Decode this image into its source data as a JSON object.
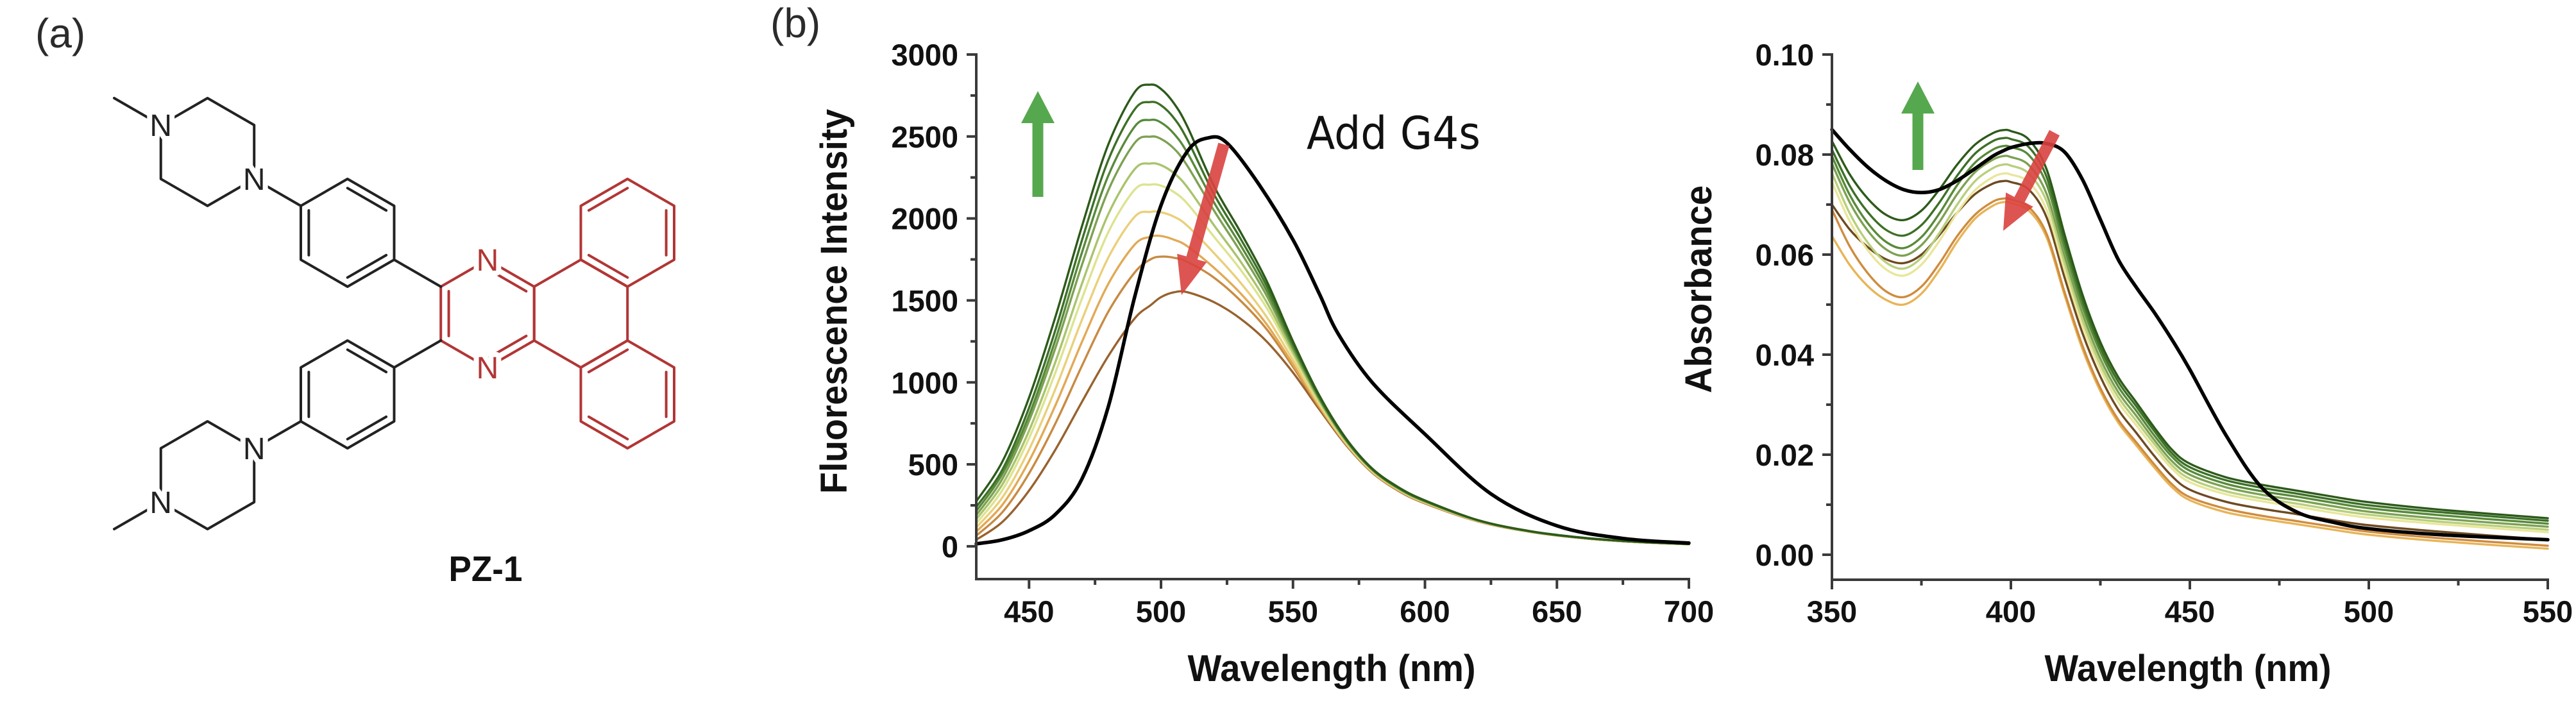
{
  "figure": {
    "panel_a_label": "(a)",
    "panel_b_label": "(b)"
  },
  "molecule": {
    "name": "PZ-1",
    "nitrogen_label": "N",
    "core_color": "#b23535",
    "substituent_color": "#222222"
  },
  "trend_arrow_colors": {
    "increase": "#56a84e",
    "decrease": "#d9423f"
  },
  "chart_data": [
    {
      "type": "line",
      "title": "",
      "xlabel": "Wavelength (nm)",
      "ylabel": "Fluorescence Intensity",
      "annotation_text": "Add G4s",
      "xlim": [
        430,
        700
      ],
      "ylim": [
        -200,
        3000
      ],
      "grid": false,
      "legend": "none",
      "xticks": [
        450,
        500,
        550,
        600,
        650,
        700
      ],
      "x_tick_labels": [
        "450",
        "500",
        "550",
        "600",
        "650",
        "700"
      ],
      "x_minor_ticks": [
        475,
        525,
        575,
        625,
        675
      ],
      "yticks": [
        0,
        500,
        1000,
        1500,
        2000,
        2500,
        3000
      ],
      "y_tick_labels": [
        "0",
        "500",
        "1000",
        "1500",
        "2000",
        "2500",
        "3000"
      ],
      "y_minor_ticks": [
        250,
        750,
        1250,
        1750,
        2250,
        2750
      ],
      "x": [
        430,
        440,
        450,
        460,
        470,
        480,
        490,
        496,
        500,
        505,
        510,
        520,
        530,
        540,
        550,
        560,
        570,
        580,
        590,
        600,
        620,
        640,
        660,
        680,
        700
      ],
      "series": [
        {
          "color": "#2c5a1a",
          "values": [
            274,
            520,
            907,
            1400,
            1950,
            2450,
            2770,
            2816,
            2790,
            2700,
            2560,
            2200,
            1920,
            1620,
            1250,
            920,
            660,
            475,
            360,
            280,
            160,
            92,
            52,
            28,
            14
          ]
        },
        {
          "color": "#3d7027",
          "values": [
            240,
            470,
            845,
            1320,
            1865,
            2355,
            2665,
            2710,
            2690,
            2610,
            2480,
            2150,
            1880,
            1590,
            1235,
            910,
            655,
            472,
            357,
            278,
            160,
            92,
            52,
            28,
            14
          ]
        },
        {
          "color": "#588a3a",
          "values": [
            215,
            445,
            800,
            1260,
            1790,
            2260,
            2560,
            2601,
            2585,
            2515,
            2400,
            2100,
            1840,
            1560,
            1220,
            905,
            652,
            470,
            355,
            276,
            159,
            91,
            51,
            28,
            14
          ]
        },
        {
          "color": "#7da152",
          "values": [
            190,
            415,
            765,
            1210,
            1715,
            2170,
            2460,
            2499,
            2485,
            2425,
            2320,
            2050,
            1800,
            1530,
            1205,
            898,
            648,
            468,
            353,
            274,
            158,
            91,
            51,
            27,
            14
          ]
        },
        {
          "color": "#a9c46c",
          "values": [
            165,
            380,
            705,
            1125,
            1600,
            2025,
            2300,
            2335,
            2325,
            2275,
            2190,
            1960,
            1740,
            1490,
            1185,
            888,
            643,
            465,
            350,
            272,
            157,
            90,
            51,
            27,
            13
          ]
        },
        {
          "color": "#dde38f",
          "values": [
            140,
            345,
            660,
            1060,
            1510,
            1915,
            2175,
            2206,
            2200,
            2160,
            2090,
            1890,
            1690,
            1455,
            1165,
            878,
            638,
            462,
            348,
            270,
            156,
            90,
            50,
            27,
            13
          ]
        },
        {
          "color": "#ead07a",
          "values": [
            115,
            300,
            590,
            960,
            1380,
            1760,
            2010,
            2040,
            2038,
            2010,
            1955,
            1790,
            1610,
            1400,
            1135,
            865,
            632,
            458,
            345,
            268,
            155,
            89,
            50,
            27,
            13
          ]
        },
        {
          "color": "#e2a955",
          "values": [
            90,
            255,
            520,
            860,
            1245,
            1600,
            1840,
            1888,
            1893,
            1870,
            1830,
            1700,
            1545,
            1355,
            1110,
            855,
            628,
            455,
            343,
            266,
            154,
            89,
            50,
            26,
            13
          ]
        },
        {
          "color": "#c88a42",
          "values": [
            65,
            210,
            445,
            750,
            1100,
            1430,
            1670,
            1750,
            1767,
            1760,
            1735,
            1640,
            1500,
            1325,
            1095,
            848,
            625,
            452,
            340,
            264,
            153,
            88,
            49,
            26,
            13
          ]
        },
        {
          "color": "#98622e",
          "values": [
            40,
            150,
            340,
            590,
            880,
            1160,
            1390,
            1470,
            1520,
            1550,
            1550,
            1490,
            1390,
            1250,
            1060,
            835,
            620,
            450,
            338,
            262,
            152,
            88,
            49,
            26,
            13
          ]
        }
      ],
      "reference_curve": {
        "color": "#000000",
        "x": [
          430,
          440,
          450,
          460,
          470,
          480,
          490,
          500,
          510,
          518,
          525,
          537,
          550,
          560,
          567,
          580,
          600,
          625,
          650,
          675,
          700
        ],
        "values": [
          15,
          40,
          95,
          195,
          410,
          850,
          1520,
          2080,
          2410,
          2492,
          2460,
          2210,
          1870,
          1540,
          1300,
          1000,
          684,
          320,
          125,
          48,
          20
        ]
      }
    },
    {
      "type": "line",
      "title": "",
      "xlabel": "Wavelength (nm)",
      "ylabel": "Absorbance",
      "xlim": [
        350,
        550
      ],
      "ylim": [
        -0.005,
        0.1
      ],
      "grid": false,
      "legend": "none",
      "xticks": [
        350,
        400,
        450,
        500,
        550
      ],
      "x_tick_labels": [
        "350",
        "400",
        "450",
        "500",
        "550"
      ],
      "x_minor_ticks": [
        375,
        425,
        475,
        525
      ],
      "yticks": [
        0.0,
        0.02,
        0.04,
        0.06,
        0.08,
        0.1
      ],
      "y_tick_labels": [
        "0.00",
        "0.02",
        "0.04",
        "0.06",
        "0.08",
        "0.10"
      ],
      "y_minor_ticks": [
        0.01,
        0.03,
        0.05,
        0.07,
        0.09
      ],
      "x": [
        350,
        355,
        360,
        365,
        370,
        375,
        380,
        385,
        390,
        395,
        398,
        400,
        405,
        410,
        415,
        420,
        425,
        430,
        435,
        440,
        445,
        450,
        460,
        470,
        480,
        490,
        500,
        520,
        550
      ],
      "series": [
        {
          "color": "#2c5a1a",
          "values": [
            0.0827,
            0.076,
            0.0712,
            0.068,
            0.0669,
            0.0688,
            0.073,
            0.078,
            0.082,
            0.0843,
            0.0849,
            0.0847,
            0.083,
            0.077,
            0.064,
            0.052,
            0.0425,
            0.0355,
            0.0305,
            0.0255,
            0.021,
            0.0182,
            0.0155,
            0.014,
            0.0128,
            0.0116,
            0.0105,
            0.009,
            0.0073
          ]
        },
        {
          "color": "#3d7027",
          "values": [
            0.081,
            0.0737,
            0.0685,
            0.065,
            0.0638,
            0.0659,
            0.0704,
            0.0758,
            0.0802,
            0.0827,
            0.0833,
            0.0831,
            0.0815,
            0.0755,
            0.0627,
            0.0509,
            0.0415,
            0.0346,
            0.0297,
            0.0248,
            0.0203,
            0.0175,
            0.0149,
            0.0134,
            0.0122,
            0.011,
            0.0099,
            0.0085,
            0.0068
          ]
        },
        {
          "color": "#588a3a",
          "values": [
            0.0797,
            0.0719,
            0.0663,
            0.0626,
            0.0613,
            0.0635,
            0.0682,
            0.0739,
            0.0784,
            0.081,
            0.0817,
            0.0815,
            0.0799,
            0.074,
            0.0614,
            0.0497,
            0.0405,
            0.0336,
            0.0288,
            0.0239,
            0.0196,
            0.0168,
            0.0142,
            0.0127,
            0.0116,
            0.0104,
            0.0093,
            0.0079,
            0.0062
          ]
        },
        {
          "color": "#7da152",
          "values": [
            0.0782,
            0.0704,
            0.0648,
            0.0611,
            0.0598,
            0.0619,
            0.0665,
            0.0721,
            0.0765,
            0.079,
            0.0797,
            0.0795,
            0.0779,
            0.0721,
            0.0598,
            0.0483,
            0.0392,
            0.0325,
            0.0278,
            0.023,
            0.0187,
            0.016,
            0.0135,
            0.012,
            0.0109,
            0.0097,
            0.0086,
            0.0072,
            0.0056
          ]
        },
        {
          "color": "#b8cf7c",
          "values": [
            0.0763,
            0.0682,
            0.0624,
            0.0585,
            0.0572,
            0.0594,
            0.0643,
            0.07,
            0.0747,
            0.0773,
            0.078,
            0.0778,
            0.0762,
            0.0706,
            0.0584,
            0.047,
            0.0381,
            0.0315,
            0.0268,
            0.0222,
            0.0179,
            0.0152,
            0.0127,
            0.0113,
            0.0102,
            0.009,
            0.008,
            0.0066,
            0.005
          ]
        },
        {
          "color": "#e9e69a",
          "values": [
            0.0745,
            0.0666,
            0.0609,
            0.0571,
            0.0558,
            0.058,
            0.0627,
            0.0684,
            0.0729,
            0.0755,
            0.0762,
            0.076,
            0.0745,
            0.0689,
            0.0569,
            0.0458,
            0.0371,
            0.0305,
            0.0259,
            0.0213,
            0.0172,
            0.0145,
            0.0121,
            0.0107,
            0.0096,
            0.0084,
            0.0074,
            0.0061,
            0.0045
          ]
        },
        {
          "color": "#6e4a20",
          "values": [
            0.07,
            0.065,
            0.0615,
            0.0591,
            0.0583,
            0.06,
            0.0639,
            0.0684,
            0.0721,
            0.0742,
            0.0747,
            0.0745,
            0.073,
            0.0674,
            0.0554,
            0.0443,
            0.0356,
            0.029,
            0.0244,
            0.0198,
            0.0157,
            0.013,
            0.0106,
            0.0092,
            0.0081,
            0.0069,
            0.0059,
            0.0046,
            0.003
          ]
        },
        {
          "color": "#cf8c3e",
          "values": [
            0.069,
            0.0616,
            0.0563,
            0.0527,
            0.0515,
            0.0536,
            0.0582,
            0.0637,
            0.068,
            0.0706,
            0.0712,
            0.071,
            0.0695,
            0.0641,
            0.0525,
            0.0418,
            0.0333,
            0.027,
            0.0225,
            0.0181,
            0.0141,
            0.0115,
            0.0092,
            0.0078,
            0.0067,
            0.0056,
            0.0046,
            0.0033,
            0.0018
          ]
        },
        {
          "color": "#e8b458",
          "values": [
            0.0637,
            0.0579,
            0.0537,
            0.051,
            0.05,
            0.0522,
            0.0569,
            0.0626,
            0.0672,
            0.0698,
            0.0705,
            0.0703,
            0.0688,
            0.0634,
            0.0519,
            0.0411,
            0.0327,
            0.0264,
            0.0219,
            0.0175,
            0.0135,
            0.0109,
            0.0085,
            0.0072,
            0.0061,
            0.005,
            0.004,
            0.0027,
            0.0012
          ]
        }
      ],
      "reference_curve": {
        "color": "#000000",
        "values": [
          0.085,
          0.081,
          0.0775,
          0.0748,
          0.073,
          0.0724,
          0.073,
          0.0748,
          0.0772,
          0.0797,
          0.0808,
          0.0814,
          0.0822,
          0.0822,
          0.0805,
          0.075,
          0.067,
          0.059,
          0.0535,
          0.0485,
          0.043,
          0.037,
          0.024,
          0.0135,
          0.0085,
          0.0065,
          0.0052,
          0.004,
          0.003
        ]
      }
    }
  ]
}
